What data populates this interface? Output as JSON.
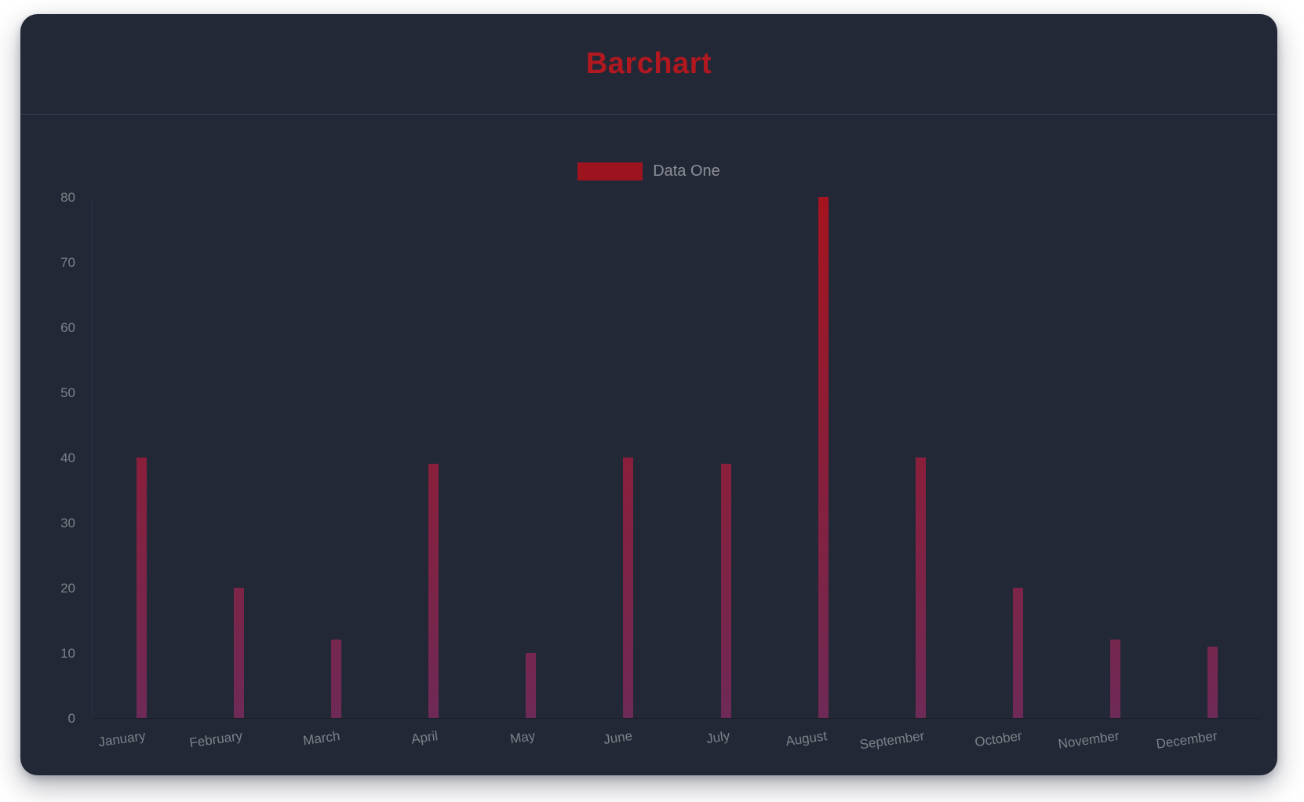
{
  "page": {
    "background": "#ffffff"
  },
  "card": {
    "title": "Barchart",
    "background": "#232837",
    "title_color": "#b2181f",
    "divider_color": "#3a4157"
  },
  "legend": {
    "label": "Data One",
    "swatch_color": "#9e141e",
    "text_color": "#8d9096"
  },
  "chart_data": {
    "type": "bar",
    "title": "Barchart",
    "categories": [
      "January",
      "February",
      "March",
      "April",
      "May",
      "June",
      "July",
      "August",
      "September",
      "October",
      "November",
      "December"
    ],
    "series": [
      {
        "name": "Data One",
        "values": [
          40,
          20,
          12,
          39,
          10,
          40,
          39,
          80,
          40,
          20,
          12,
          11
        ]
      }
    ],
    "ylim": [
      0,
      80
    ],
    "y_ticks": [
      0,
      10,
      20,
      30,
      40,
      50,
      60,
      70,
      80
    ],
    "grid": false,
    "legend_position": "top-center",
    "axis_text_color": "#7d8187",
    "bar_gradient_top": "#a5141f",
    "bar_gradient_bottom": "#6e2a56"
  }
}
